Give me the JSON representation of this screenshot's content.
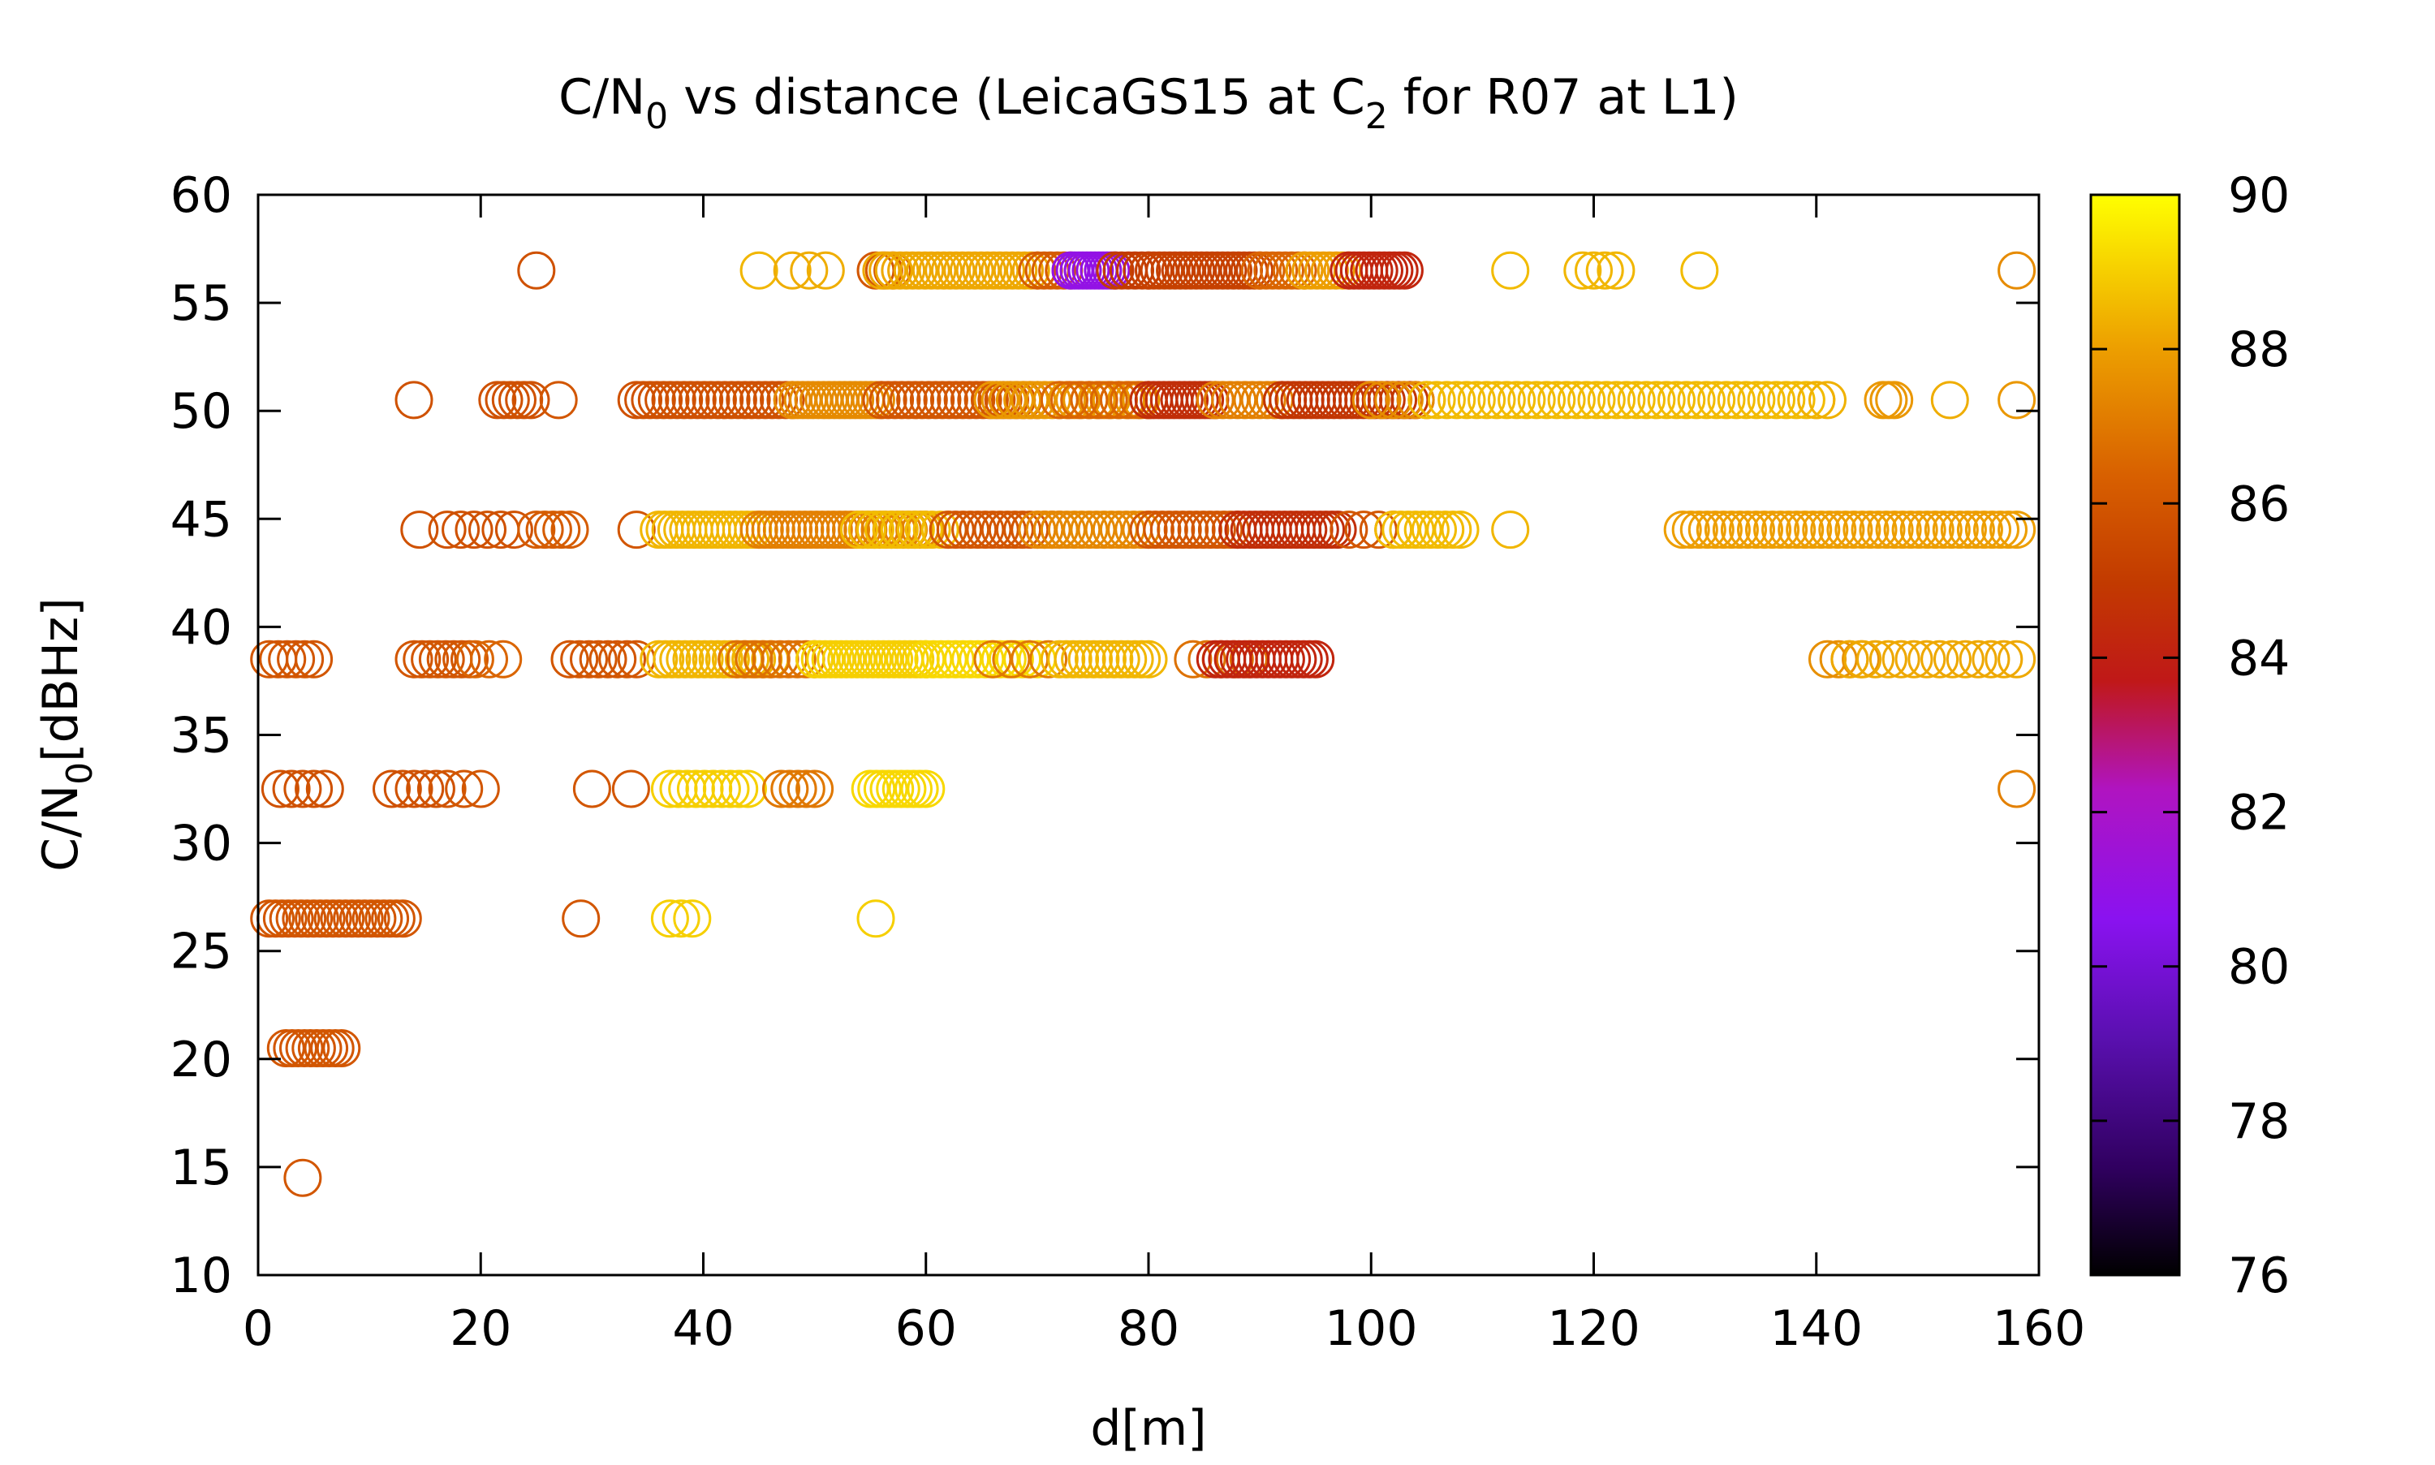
{
  "chart_data": {
    "type": "scatter",
    "title": {
      "prefix": "C/N",
      "prefix_sub": "0",
      "middle": " vs distance (LeicaGS15 at C",
      "middle_sub": "2",
      "suffix": " for R07 at L1)"
    },
    "xlabel": "d[m]",
    "ylabel": {
      "prefix": "C/N",
      "sub": "0",
      "suffix": "[dBHz]"
    },
    "xlim": [
      0,
      160
    ],
    "ylim": [
      10,
      60
    ],
    "xticks": [
      0,
      20,
      40,
      60,
      80,
      100,
      120,
      140,
      160
    ],
    "yticks": [
      10,
      15,
      20,
      25,
      30,
      35,
      40,
      45,
      50,
      55,
      60
    ],
    "colorbar": {
      "range": [
        76,
        90
      ],
      "ticks": [
        76,
        78,
        80,
        82,
        84,
        86,
        88,
        90
      ]
    },
    "grid": false,
    "marker": "open-circle",
    "rows": [
      {
        "y": 56.5,
        "segments": [
          [
            25,
            25,
            85.8,
            1
          ],
          [
            45,
            45,
            88.5,
            1
          ],
          [
            48,
            51,
            88.3,
            3
          ],
          [
            55.5,
            57,
            86.0,
            3
          ],
          [
            56,
            70,
            88.2,
            26
          ],
          [
            70,
            73,
            86.2,
            6
          ],
          [
            73,
            77,
            81.0,
            12
          ],
          [
            77,
            80,
            85.0,
            6
          ],
          [
            80,
            90,
            85.2,
            22
          ],
          [
            90,
            94,
            86.5,
            8
          ],
          [
            94,
            98,
            88.0,
            8
          ],
          [
            98,
            103,
            84.2,
            12
          ],
          [
            112.5,
            112.5,
            88.6,
            1
          ],
          [
            119,
            122,
            88.5,
            4
          ],
          [
            129.5,
            129.5,
            88.6,
            1
          ],
          [
            158,
            158,
            87.5,
            1
          ]
        ]
      },
      {
        "y": 50.5,
        "segments": [
          [
            14,
            14,
            85.8,
            1
          ],
          [
            21.5,
            24.5,
            85.8,
            6
          ],
          [
            27,
            27,
            86.0,
            1
          ],
          [
            34,
            48,
            85.8,
            24
          ],
          [
            48,
            56,
            87.5,
            18
          ],
          [
            56,
            70,
            86.0,
            24
          ],
          [
            66,
            80,
            87.8,
            22
          ],
          [
            72,
            80,
            86.5,
            10
          ],
          [
            80,
            86,
            84.5,
            14
          ],
          [
            86,
            92,
            87.2,
            10
          ],
          [
            92,
            104,
            84.8,
            24
          ],
          [
            100,
            105,
            87.5,
            6
          ],
          [
            105,
            140,
            88.6,
            40
          ],
          [
            140,
            141,
            88.4,
            2
          ],
          [
            146,
            147,
            87.8,
            3
          ],
          [
            152,
            152,
            88.3,
            1
          ],
          [
            158,
            158,
            87.8,
            1
          ]
        ]
      },
      {
        "y": 44.5,
        "segments": [
          [
            14.5,
            14.5,
            85.8,
            1
          ],
          [
            17,
            23,
            85.8,
            6
          ],
          [
            25,
            28,
            86.2,
            5
          ],
          [
            34,
            34,
            86.0,
            1
          ],
          [
            36,
            45,
            88.5,
            18
          ],
          [
            45,
            60,
            87.2,
            30
          ],
          [
            54,
            62,
            88.6,
            12
          ],
          [
            62,
            72,
            86.0,
            16
          ],
          [
            70,
            80,
            87.4,
            16
          ],
          [
            80,
            88,
            86.0,
            14
          ],
          [
            88,
            97,
            84.5,
            18
          ],
          [
            98,
            102,
            86.0,
            4
          ],
          [
            102,
            108,
            88.6,
            10
          ],
          [
            112.5,
            112.5,
            88.5,
            1
          ],
          [
            128,
            158,
            88.0,
            42
          ]
        ]
      },
      {
        "y": 38.5,
        "segments": [
          [
            1,
            5,
            86.0,
            6
          ],
          [
            14,
            19,
            86.0,
            8
          ],
          [
            19.5,
            22,
            86.5,
            3
          ],
          [
            28,
            34,
            86.0,
            8
          ],
          [
            36,
            46,
            88.5,
            18
          ],
          [
            43,
            50,
            86.8,
            10
          ],
          [
            50,
            60,
            89.0,
            22
          ],
          [
            60,
            70,
            89.2,
            16
          ],
          [
            66,
            71,
            87.0,
            4
          ],
          [
            72,
            80,
            88.5,
            14
          ],
          [
            84,
            89,
            86.8,
            5
          ],
          [
            86,
            95,
            84.2,
            18
          ],
          [
            141,
            144,
            87.6,
            4
          ],
          [
            143,
            158,
            88.2,
            14
          ]
        ]
      },
      {
        "y": 32.5,
        "segments": [
          [
            2,
            6,
            85.8,
            5
          ],
          [
            12,
            16,
            85.8,
            5
          ],
          [
            17,
            20,
            86.0,
            3
          ],
          [
            30,
            30,
            86.0,
            1
          ],
          [
            33.5,
            33.5,
            86.0,
            1
          ],
          [
            37,
            44,
            89.0,
            10
          ],
          [
            47,
            50,
            87.0,
            5
          ],
          [
            55,
            60,
            89.2,
            10
          ],
          [
            158,
            158,
            87.2,
            1
          ]
        ]
      },
      {
        "y": 26.5,
        "segments": [
          [
            1,
            13,
            86.0,
            22
          ],
          [
            29,
            29,
            86.0,
            1
          ],
          [
            37,
            39,
            89.0,
            3
          ],
          [
            55.5,
            55.5,
            89.0,
            1
          ]
        ]
      },
      {
        "y": 20.5,
        "segments": [
          [
            2.5,
            7.5,
            86.0,
            10
          ]
        ]
      },
      {
        "y": 14.5,
        "segments": [
          [
            4,
            4,
            86.0,
            1
          ]
        ]
      }
    ]
  }
}
